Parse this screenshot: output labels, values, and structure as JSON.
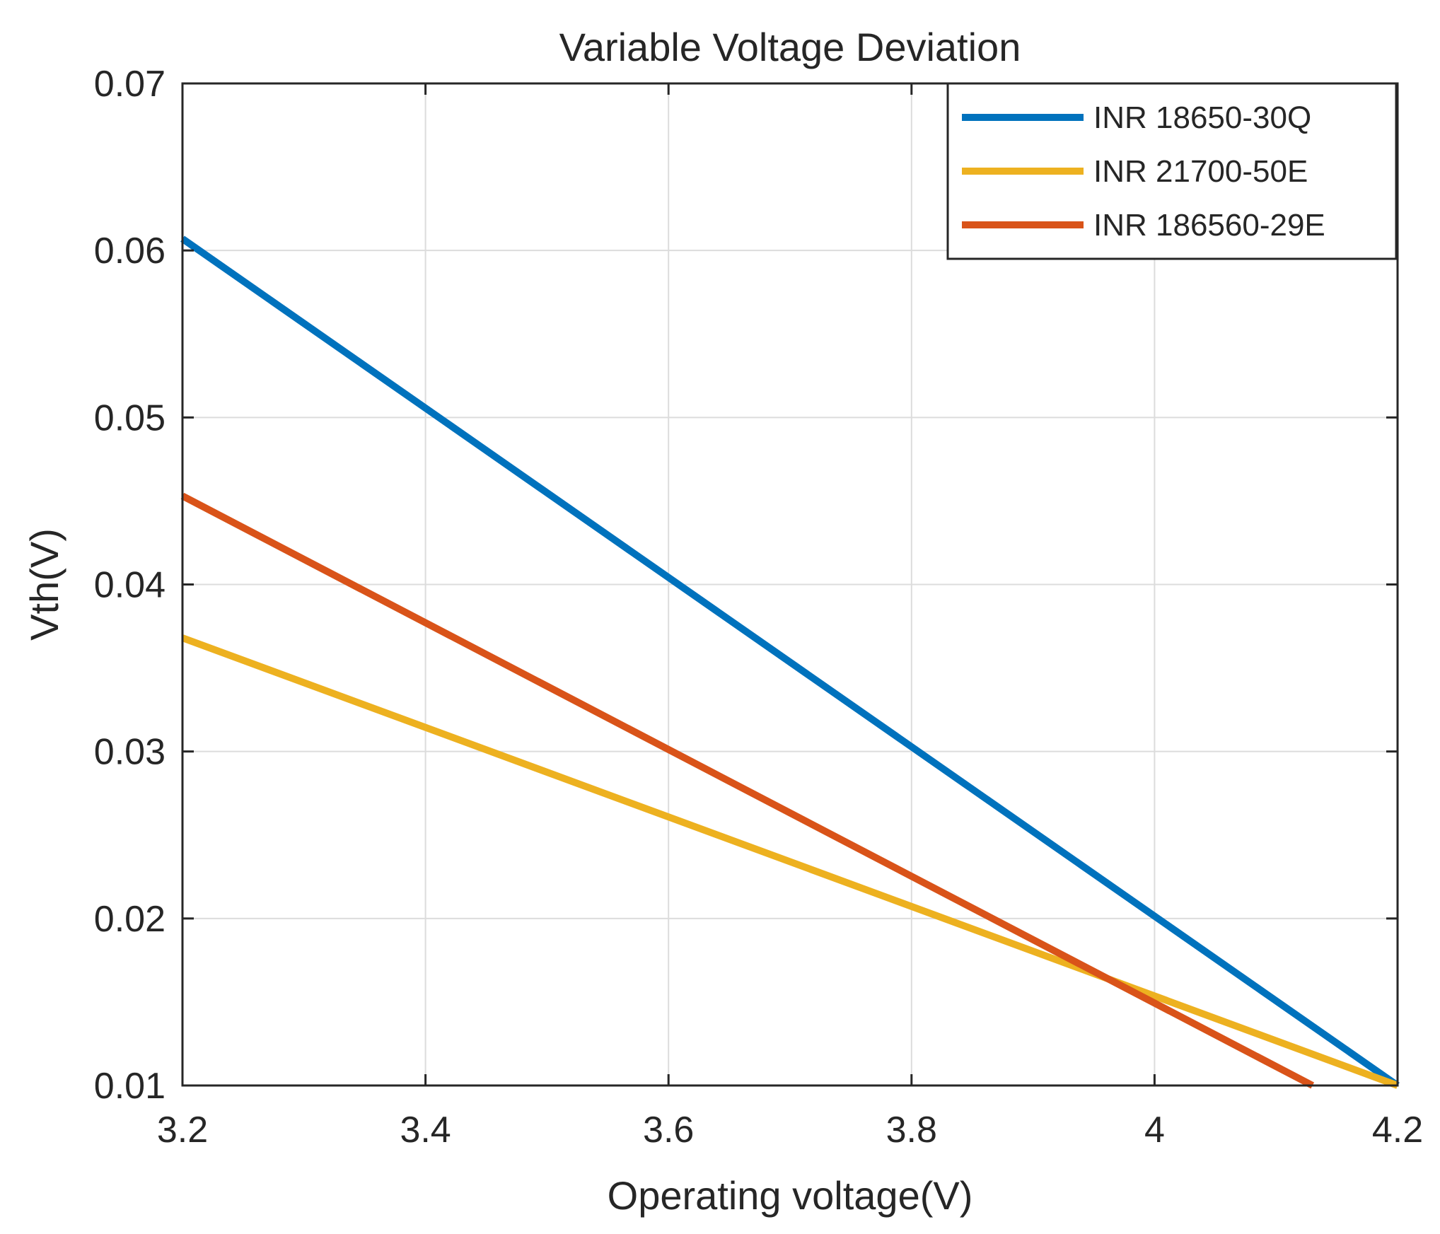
{
  "chart_data": {
    "type": "line",
    "title": "Variable Voltage Deviation",
    "xlabel": "Operating voltage(V)",
    "ylabel": "Vth(V)",
    "xlim": [
      3.2,
      4.2
    ],
    "ylim": [
      0.01,
      0.07
    ],
    "xticks": [
      3.2,
      3.4,
      3.6,
      3.8,
      4.0,
      4.2
    ],
    "xtick_labels": [
      "3.2",
      "3.4",
      "3.6",
      "3.8",
      "4",
      "4.2"
    ],
    "yticks": [
      0.01,
      0.02,
      0.03,
      0.04,
      0.05,
      0.06,
      0.07
    ],
    "ytick_labels": [
      "0.01",
      "0.02",
      "0.03",
      "0.04",
      "0.05",
      "0.06",
      "0.07"
    ],
    "grid": true,
    "legend_position": "top-right",
    "series": [
      {
        "name": "INR 18650-30Q",
        "color": "#0072BD",
        "x": [
          3.2,
          4.2
        ],
        "y": [
          0.0607,
          0.01
        ]
      },
      {
        "name": "INR 21700-50E",
        "color": "#EDB120",
        "x": [
          3.2,
          4.2
        ],
        "y": [
          0.0368,
          0.01
        ]
      },
      {
        "name": "INR 186560-29E",
        "color": "#D95319",
        "x": [
          3.2,
          4.13
        ],
        "y": [
          0.0453,
          0.01
        ]
      }
    ]
  }
}
